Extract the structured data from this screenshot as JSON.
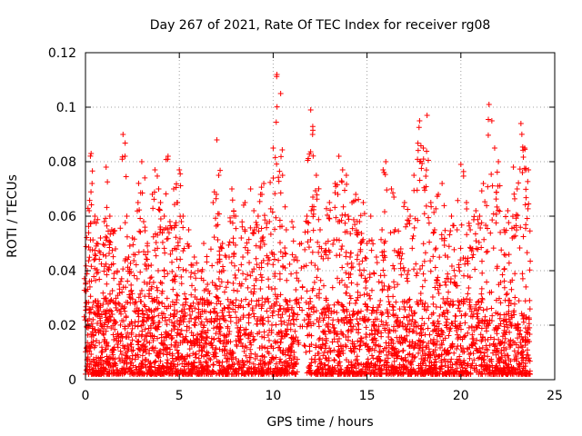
{
  "chart_data": {
    "type": "scatter",
    "title": "Day 267 of 2021, Rate Of TEC Index for receiver rg08",
    "xlabel": "GPS time / hours",
    "ylabel": "ROTI / TECUs",
    "xlim": [
      0,
      25
    ],
    "ylim": [
      0,
      0.12
    ],
    "xticks": [
      "0",
      "5",
      "10",
      "15",
      "20",
      "25"
    ],
    "yticks": [
      "0",
      "0.02",
      "0.04",
      "0.06",
      "0.08",
      "0.1",
      "0.12"
    ],
    "grid": true,
    "marker": "+",
    "color": "#ff0000",
    "series": [
      {
        "x": [
          0.1,
          0.2,
          0.3,
          0.35,
          0.5,
          0.6,
          0.8,
          1.0,
          1.1,
          1.3,
          1.4,
          1.6,
          1.8,
          2.0,
          2.2,
          2.3,
          2.5,
          2.8,
          3.0,
          3.1,
          3.3,
          3.5,
          3.7,
          3.9,
          4.0,
          4.2,
          4.4,
          4.5,
          4.7,
          4.9,
          5.0,
          5.2,
          5.5,
          5.8,
          6.0,
          6.3,
          6.5,
          6.8,
          7.0,
          7.1,
          7.3,
          7.5,
          7.8,
          8.0,
          8.3,
          8.5,
          8.8,
          9.0,
          9.2,
          9.4,
          9.5,
          9.8,
          10.0,
          10.2,
          10.4,
          10.5,
          10.7,
          11.0,
          11.2,
          11.5,
          11.8,
          12.0,
          12.1,
          12.3,
          12.5,
          12.8,
          13.0,
          13.3,
          13.5,
          13.7,
          13.9,
          14.0,
          14.2,
          14.4,
          14.6,
          14.8,
          15.0,
          15.2,
          15.5,
          15.8,
          16.0,
          16.3,
          16.5,
          16.8,
          17.0,
          17.3,
          17.5,
          17.8,
          18.0,
          18.2,
          18.4,
          18.6,
          18.8,
          19.0,
          19.3,
          19.5,
          19.8,
          20.0,
          20.3,
          20.5,
          20.8,
          21.0,
          21.2,
          21.5,
          21.8,
          22.0,
          22.3,
          22.5,
          22.8,
          23.0,
          23.2,
          23.4,
          23.6
        ],
        "y": [
          0.04,
          0.062,
          0.083,
          0.072,
          0.06,
          0.05,
          0.052,
          0.058,
          0.078,
          0.06,
          0.055,
          0.048,
          0.035,
          0.09,
          0.06,
          0.045,
          0.052,
          0.065,
          0.08,
          0.058,
          0.05,
          0.042,
          0.077,
          0.07,
          0.065,
          0.06,
          0.082,
          0.058,
          0.07,
          0.065,
          0.077,
          0.06,
          0.055,
          0.045,
          0.04,
          0.05,
          0.035,
          0.065,
          0.088,
          0.075,
          0.05,
          0.045,
          0.07,
          0.06,
          0.052,
          0.065,
          0.07,
          0.055,
          0.06,
          0.068,
          0.072,
          0.058,
          0.085,
          0.112,
          0.105,
          0.075,
          0.055,
          0.058,
          0.045,
          0.05,
          0.06,
          0.099,
          0.09,
          0.075,
          0.055,
          0.05,
          0.065,
          0.072,
          0.082,
          0.077,
          0.075,
          0.06,
          0.065,
          0.068,
          0.058,
          0.065,
          0.05,
          0.06,
          0.045,
          0.055,
          0.08,
          0.07,
          0.055,
          0.048,
          0.065,
          0.06,
          0.075,
          0.095,
          0.085,
          0.097,
          0.065,
          0.055,
          0.068,
          0.072,
          0.045,
          0.06,
          0.055,
          0.079,
          0.065,
          0.055,
          0.062,
          0.06,
          0.072,
          0.101,
          0.085,
          0.08,
          0.055,
          0.062,
          0.078,
          0.07,
          0.094,
          0.085,
          0.077
        ]
      }
    ]
  }
}
